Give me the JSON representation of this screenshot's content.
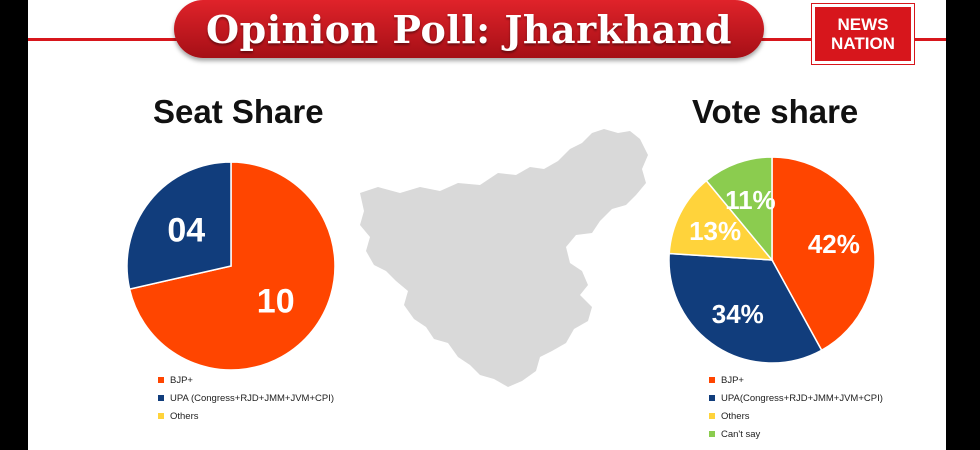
{
  "header": {
    "title": "Opinion Poll: Jharkhand",
    "logo_line1": "NEWS",
    "logo_line2": "NATION"
  },
  "colors": {
    "bjp": "#ff4500",
    "upa": "#113d7c",
    "others": "#ffd33b",
    "cant_say": "#8bcc4f",
    "brand_red": "#d7161c",
    "map_gray": "#d9d9d9"
  },
  "chart_data": [
    {
      "type": "pie",
      "title": "Seat Share",
      "slices": [
        {
          "label": "BJP+",
          "value": 10,
          "display": "10",
          "color": "#ff4500"
        },
        {
          "label": "UPA (Congress+RJD+JMM+JVM+CPI)",
          "value": 4,
          "display": "04",
          "color": "#113d7c"
        },
        {
          "label": "Others",
          "value": 0,
          "display": "",
          "color": "#ffd33b"
        }
      ],
      "legend_position": "bottom"
    },
    {
      "type": "pie",
      "title": "Vote share",
      "slices": [
        {
          "label": "BJP+",
          "value": 42,
          "display": "42%",
          "color": "#ff4500"
        },
        {
          "label": "UPA(Congress+RJD+JMM+JVM+CPI)",
          "value": 34,
          "display": "34%",
          "color": "#113d7c"
        },
        {
          "label": "Others",
          "value": 13,
          "display": "13%",
          "color": "#ffd33b"
        },
        {
          "label": "Can't say",
          "value": 11,
          "display": "11%",
          "color": "#8bcc4f"
        }
      ],
      "legend_position": "bottom"
    }
  ]
}
